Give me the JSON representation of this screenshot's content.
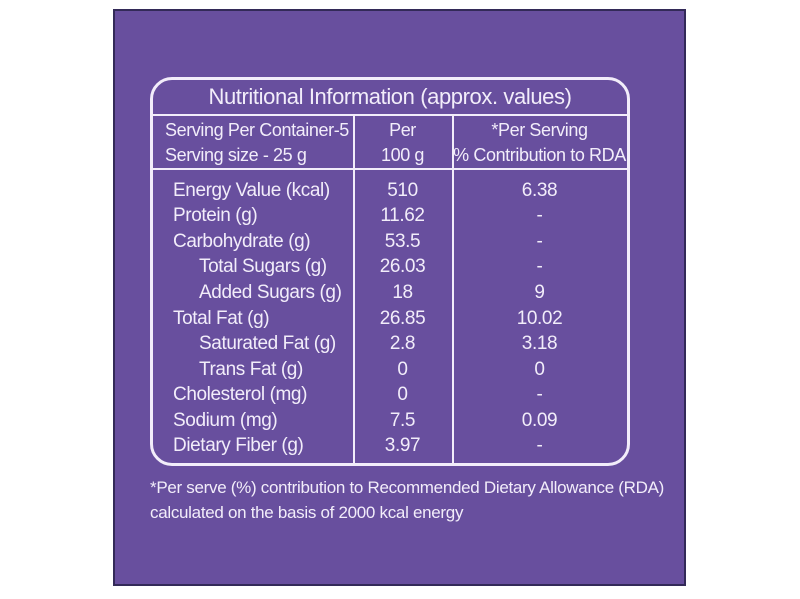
{
  "theme": {
    "page_bg": "#ffffff",
    "panel_bg": "#684f9e",
    "panel_border": "#332a58",
    "text_color": "#f2edfa"
  },
  "label": {
    "title": "Nutritional Information (approx. values)",
    "header": {
      "serving_line1": "Serving Per Container-5",
      "serving_line2": "Serving size - 25 g",
      "per_line1": "Per",
      "per_line2": "100 g",
      "rda_line1": "*Per Serving",
      "rda_line2": "% Contribution to RDA"
    },
    "rows": [
      {
        "name": "Energy Value (kcal)",
        "indent": false,
        "per_100g": "510",
        "per_serving": "6.38"
      },
      {
        "name": "Protein (g)",
        "indent": false,
        "per_100g": "11.62",
        "per_serving": "-"
      },
      {
        "name": "Carbohydrate (g)",
        "indent": false,
        "per_100g": "53.5",
        "per_serving": "-"
      },
      {
        "name": "Total Sugars (g)",
        "indent": true,
        "per_100g": "26.03",
        "per_serving": "-"
      },
      {
        "name": "Added Sugars (g)",
        "indent": true,
        "per_100g": "18",
        "per_serving": "9"
      },
      {
        "name": "Total Fat (g)",
        "indent": false,
        "per_100g": "26.85",
        "per_serving": "10.02"
      },
      {
        "name": "Saturated Fat (g)",
        "indent": true,
        "per_100g": "2.8",
        "per_serving": "3.18"
      },
      {
        "name": "Trans Fat (g)",
        "indent": true,
        "per_100g": "0",
        "per_serving": "0"
      },
      {
        "name": "Cholesterol (mg)",
        "indent": false,
        "per_100g": "0",
        "per_serving": "-"
      },
      {
        "name": "Sodium (mg)",
        "indent": false,
        "per_100g": "7.5",
        "per_serving": "0.09"
      },
      {
        "name": "Dietary Fiber (g)",
        "indent": false,
        "per_100g": "3.97",
        "per_serving": "-"
      }
    ],
    "footnote_line1": "*Per serve (%) contribution to Recommended Dietary Allowance (RDA)",
    "footnote_line2": "calculated on the basis of 2000 kcal energy"
  }
}
